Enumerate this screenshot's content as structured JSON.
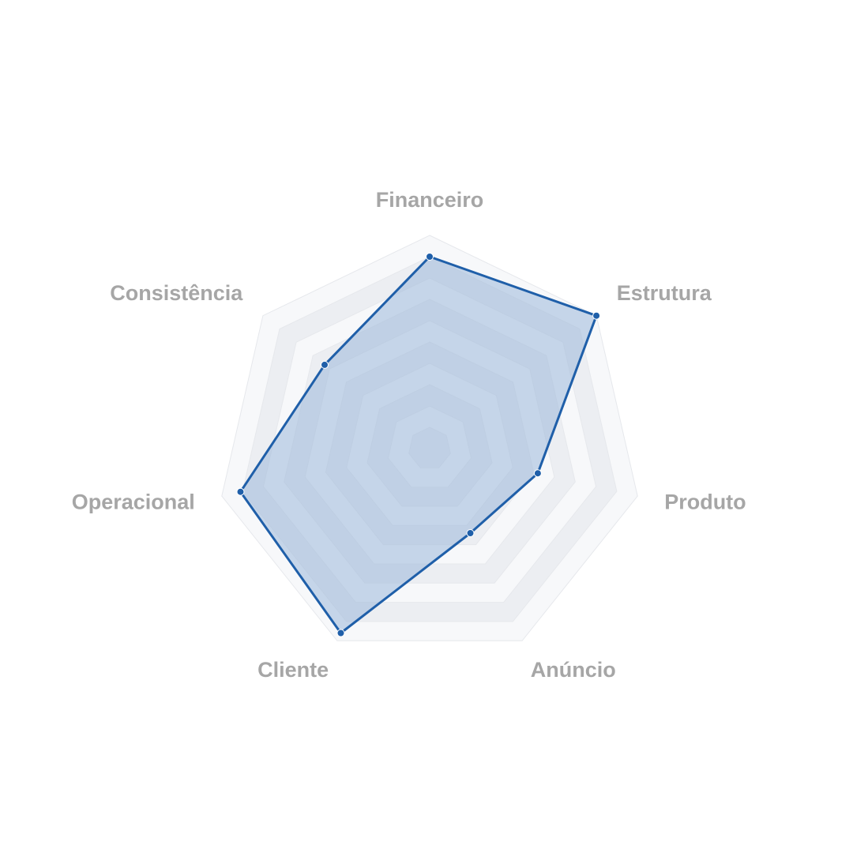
{
  "chart_data": {
    "type": "radar",
    "categories": [
      "Financeiro",
      "Estrutura",
      "Produto",
      "Anúncio",
      "Cliente",
      "Operacional",
      "Consistência"
    ],
    "series": [
      {
        "values": [
          9.0,
          10.0,
          5.2,
          4.4,
          9.6,
          9.1,
          6.3
        ]
      }
    ],
    "rlim": [
      0,
      10
    ],
    "rings": 10,
    "grid": true,
    "legend": "none",
    "colors": {
      "line": "#1f5fa9",
      "fill": "#9db8da",
      "band_light": "#f7f8fa",
      "band_dark": "#eceef2",
      "label": "#a6a6a6"
    }
  }
}
